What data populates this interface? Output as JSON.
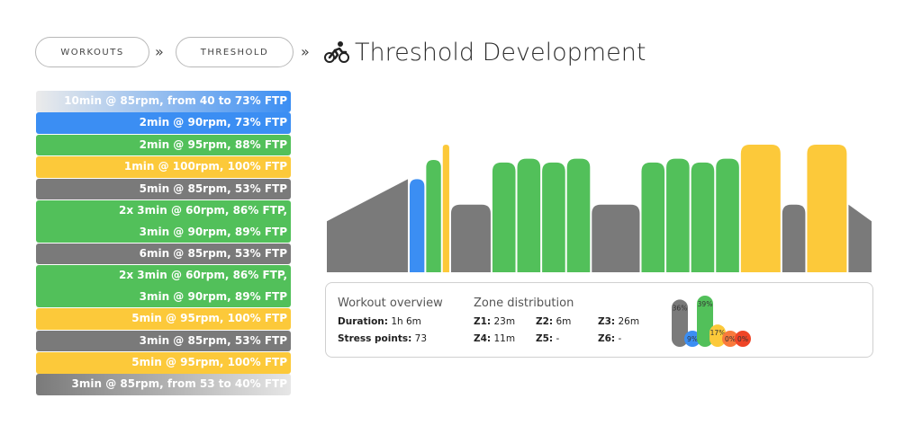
{
  "breadcrumb": {
    "items": [
      {
        "label": "WORKOUTS"
      },
      {
        "label": "THRESHOLD"
      }
    ],
    "separator": "»"
  },
  "page_title": "Threshold Development",
  "title_icon": "cyclist-icon",
  "colors": {
    "z1": "#7a7a7a",
    "z2": "#3b8ef3",
    "z3": "#52c05a",
    "z4": "#fcc93a",
    "z5": "#f97a3c",
    "z6": "#ef4527"
  },
  "steps": [
    {
      "zone": "warmup",
      "lines": [
        "10min @ 85rpm, from 40 to 73% FTP"
      ]
    },
    {
      "zone": "z2",
      "lines": [
        "2min @ 90rpm, 73% FTP"
      ]
    },
    {
      "zone": "z3",
      "lines": [
        "2min @ 95rpm, 88% FTP"
      ]
    },
    {
      "zone": "z4",
      "lines": [
        "1min @ 100rpm, 100% FTP"
      ]
    },
    {
      "zone": "z1",
      "lines": [
        "5min @ 85rpm, 53% FTP"
      ]
    },
    {
      "zone": "z3",
      "lines": [
        "2x 3min @ 60rpm, 86% FTP,",
        "3min @ 90rpm, 89% FTP"
      ]
    },
    {
      "zone": "z1",
      "lines": [
        "6min @ 85rpm, 53% FTP"
      ]
    },
    {
      "zone": "z3",
      "lines": [
        "2x 3min @ 60rpm, 86% FTP,",
        "3min @ 90rpm, 89% FTP"
      ]
    },
    {
      "zone": "z4",
      "lines": [
        "5min @ 95rpm, 100% FTP"
      ]
    },
    {
      "zone": "z1",
      "lines": [
        "3min @ 85rpm, 53% FTP"
      ]
    },
    {
      "zone": "z4",
      "lines": [
        "5min @ 95rpm, 100% FTP"
      ]
    },
    {
      "zone": "cooldown",
      "lines": [
        "3min @ 85rpm, from 53 to 40% FTP"
      ]
    }
  ],
  "workout_graph": {
    "segments": [
      {
        "type": "ramp",
        "minutes": 10,
        "from": 40,
        "to": 73
      },
      {
        "type": "block",
        "minutes": 2,
        "ftp": 73,
        "zone": "z2"
      },
      {
        "type": "block",
        "minutes": 2,
        "ftp": 88,
        "zone": "z3"
      },
      {
        "type": "block",
        "minutes": 1,
        "ftp": 100,
        "zone": "z4"
      },
      {
        "type": "block",
        "minutes": 5,
        "ftp": 53,
        "zone": "z1"
      },
      {
        "type": "block",
        "minutes": 3,
        "ftp": 86,
        "zone": "z3"
      },
      {
        "type": "block",
        "minutes": 3,
        "ftp": 89,
        "zone": "z3"
      },
      {
        "type": "block",
        "minutes": 3,
        "ftp": 86,
        "zone": "z3"
      },
      {
        "type": "block",
        "minutes": 3,
        "ftp": 89,
        "zone": "z3"
      },
      {
        "type": "block",
        "minutes": 6,
        "ftp": 53,
        "zone": "z1"
      },
      {
        "type": "block",
        "minutes": 3,
        "ftp": 86,
        "zone": "z3"
      },
      {
        "type": "block",
        "minutes": 3,
        "ftp": 89,
        "zone": "z3"
      },
      {
        "type": "block",
        "minutes": 3,
        "ftp": 86,
        "zone": "z3"
      },
      {
        "type": "block",
        "minutes": 3,
        "ftp": 89,
        "zone": "z3"
      },
      {
        "type": "block",
        "minutes": 5,
        "ftp": 100,
        "zone": "z4"
      },
      {
        "type": "block",
        "minutes": 3,
        "ftp": 53,
        "zone": "z1"
      },
      {
        "type": "block",
        "minutes": 5,
        "ftp": 100,
        "zone": "z4"
      },
      {
        "type": "ramp",
        "minutes": 3,
        "from": 53,
        "to": 40
      }
    ]
  },
  "overview": {
    "title": "Workout overview",
    "duration_label": "Duration:",
    "duration_value": "1h 6m",
    "stress_label": "Stress points:",
    "stress_value": "73",
    "zone_title": "Zone distribution",
    "zones": [
      {
        "label": "Z1:",
        "value": "23m"
      },
      {
        "label": "Z2:",
        "value": "6m"
      },
      {
        "label": "Z3:",
        "value": "26m"
      },
      {
        "label": "Z4:",
        "value": "11m"
      },
      {
        "label": "Z5:",
        "value": "-"
      },
      {
        "label": "Z6:",
        "value": "-"
      }
    ]
  },
  "chart_data": {
    "type": "bar",
    "categories": [
      "Z1",
      "Z2",
      "Z3",
      "Z4",
      "Z5",
      "Z6"
    ],
    "values": [
      36,
      9,
      39,
      17,
      0,
      0
    ],
    "data_labels": [
      "36%",
      "9%",
      "39%",
      "17%",
      "0%",
      "0%"
    ],
    "title": "",
    "xlabel": "",
    "ylabel": "",
    "ylim": [
      0,
      39
    ]
  }
}
